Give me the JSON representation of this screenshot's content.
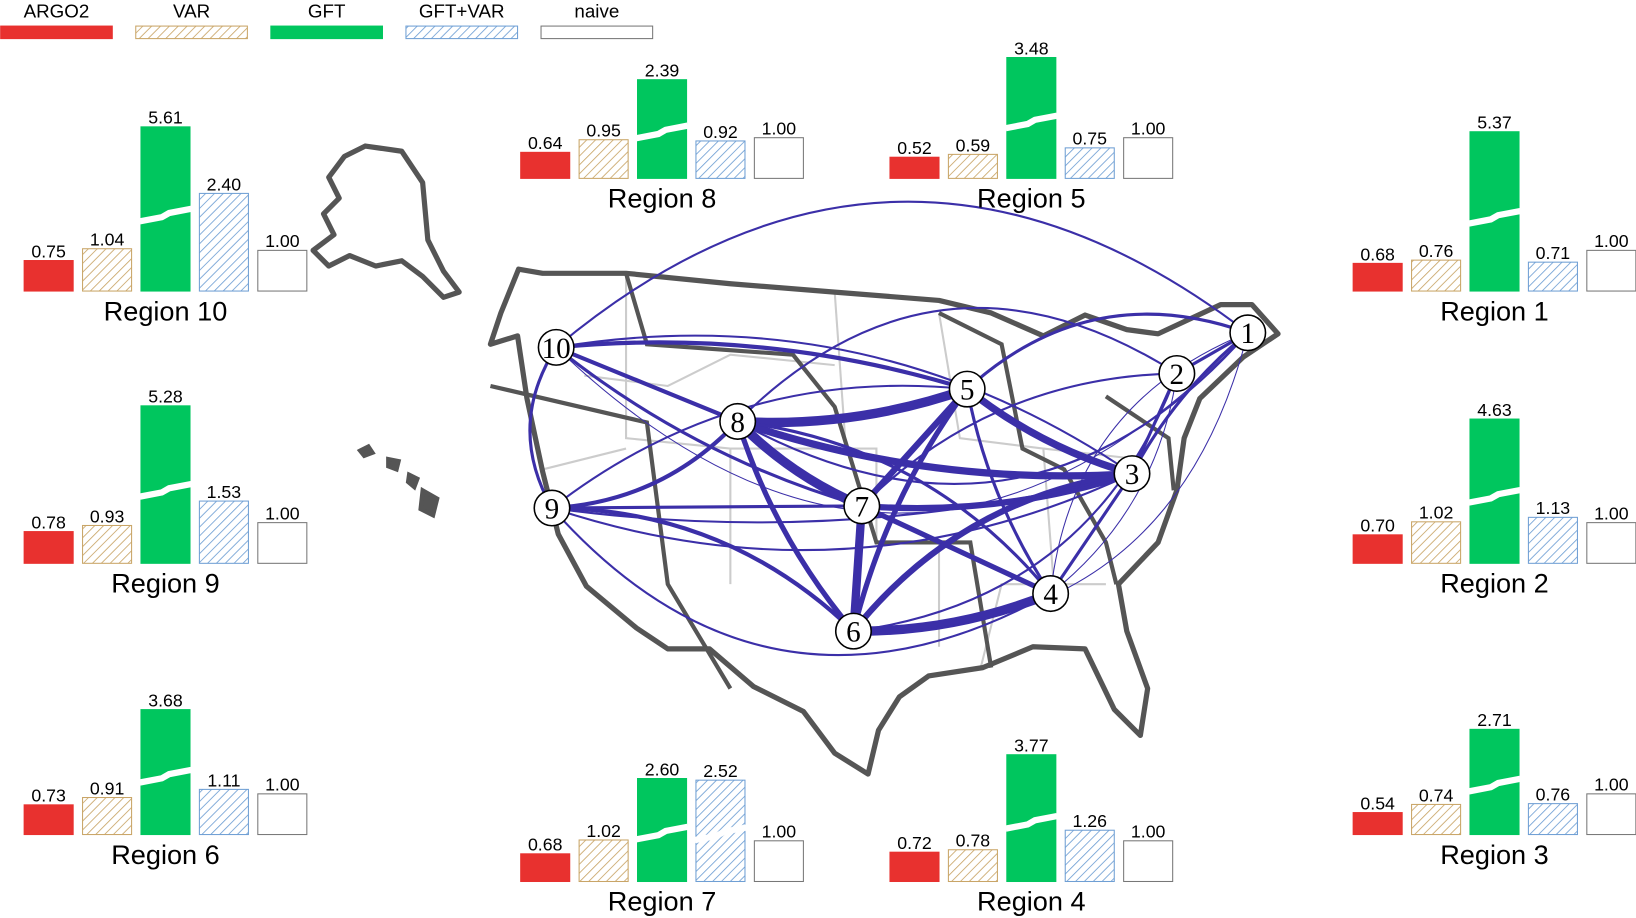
{
  "legend": [
    {
      "name": "ARGO2",
      "color": "#e8312f",
      "pattern": "solid"
    },
    {
      "name": "VAR",
      "color": "#c9a567",
      "pattern": "hatch"
    },
    {
      "name": "GFT",
      "color": "#00c65e",
      "pattern": "solid"
    },
    {
      "name": "GFT+VAR",
      "color": "#6f9fd4",
      "pattern": "hatch"
    },
    {
      "name": "naive",
      "color": "#ffffff",
      "pattern": "solid"
    }
  ],
  "network": {
    "nodes": [
      "1",
      "2",
      "3",
      "4",
      "5",
      "6",
      "7",
      "8",
      "9",
      "10"
    ]
  },
  "chart_data": [
    {
      "type": "bar",
      "title": "Region 10",
      "values": [
        0.75,
        1.04,
        5.61,
        2.4,
        1.0
      ],
      "value_labels": [
        "0.75",
        "1.04",
        "5.61",
        "2.40",
        "1.00"
      ],
      "broken": [
        false,
        false,
        true,
        false,
        false
      ]
    },
    {
      "type": "bar",
      "title": "Region 9",
      "values": [
        0.78,
        0.93,
        5.28,
        1.53,
        1.0
      ],
      "value_labels": [
        "0.78",
        "0.93",
        "5.28",
        "1.53",
        "1.00"
      ],
      "broken": [
        false,
        false,
        true,
        false,
        false
      ]
    },
    {
      "type": "bar",
      "title": "Region 6",
      "values": [
        0.73,
        0.91,
        3.68,
        1.11,
        1.0
      ],
      "value_labels": [
        "0.73",
        "0.91",
        "3.68",
        "1.11",
        "1.00"
      ],
      "broken": [
        false,
        false,
        true,
        false,
        false
      ]
    },
    {
      "type": "bar",
      "title": "Region 8",
      "values": [
        0.64,
        0.95,
        2.39,
        0.92,
        1.0
      ],
      "value_labels": [
        "0.64",
        "0.95",
        "2.39",
        "0.92",
        "1.00"
      ],
      "broken": [
        false,
        false,
        true,
        false,
        false
      ]
    },
    {
      "type": "bar",
      "title": "Region 5",
      "values": [
        0.52,
        0.59,
        3.48,
        0.75,
        1.0
      ],
      "value_labels": [
        "0.52",
        "0.59",
        "3.48",
        "0.75",
        "1.00"
      ],
      "broken": [
        false,
        false,
        true,
        false,
        false
      ]
    },
    {
      "type": "bar",
      "title": "Region 7",
      "values": [
        0.68,
        1.02,
        2.6,
        2.52,
        1.0
      ],
      "value_labels": [
        "0.68",
        "1.02",
        "2.60",
        "2.52",
        "1.00"
      ],
      "broken": [
        false,
        false,
        true,
        true,
        false
      ]
    },
    {
      "type": "bar",
      "title": "Region 4",
      "values": [
        0.72,
        0.78,
        3.77,
        1.26,
        1.0
      ],
      "value_labels": [
        "0.72",
        "0.78",
        "3.77",
        "1.26",
        "1.00"
      ],
      "broken": [
        false,
        false,
        true,
        false,
        false
      ]
    },
    {
      "type": "bar",
      "title": "Region 1",
      "values": [
        0.68,
        0.76,
        5.37,
        0.71,
        1.0
      ],
      "value_labels": [
        "0.68",
        "0.76",
        "5.37",
        "0.71",
        "1.00"
      ],
      "broken": [
        false,
        false,
        true,
        false,
        false
      ]
    },
    {
      "type": "bar",
      "title": "Region 2",
      "values": [
        0.7,
        1.02,
        4.63,
        1.13,
        1.0
      ],
      "value_labels": [
        "0.70",
        "1.02",
        "4.63",
        "1.13",
        "1.00"
      ],
      "broken": [
        false,
        false,
        true,
        false,
        false
      ]
    },
    {
      "type": "bar",
      "title": "Region 3",
      "values": [
        0.54,
        0.74,
        2.71,
        0.76,
        1.0
      ],
      "value_labels": [
        "0.54",
        "0.74",
        "2.71",
        "0.76",
        "1.00"
      ],
      "broken": [
        false,
        false,
        true,
        false,
        false
      ]
    }
  ]
}
